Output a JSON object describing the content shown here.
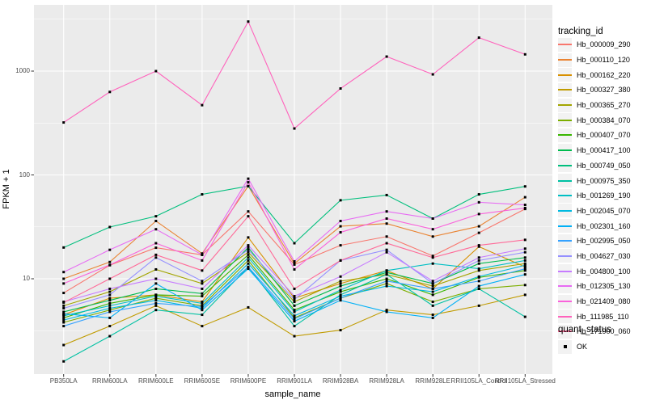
{
  "chart_data": {
    "type": "line",
    "title": "",
    "xlabel": "sample_name",
    "ylabel": "FPKM + 1",
    "yscale": "log10",
    "ytick_labels": [
      "10",
      "100",
      "1000"
    ],
    "ytick_values": [
      10,
      100,
      1000
    ],
    "yminor_values": [
      3.162,
      31.62,
      316.2,
      3162
    ],
    "ylim": [
      1.4,
      4300
    ],
    "grid": true,
    "legend_position": "right",
    "panel_bg": "#EBEBEB",
    "grid_color": "#FFFFFF",
    "point_color": "#000000",
    "tick_color": "#333333",
    "categories": [
      "PB350LA",
      "RRIM600LA",
      "RRIM600LE",
      "RRIM600SE",
      "RRIM600PE",
      "RRIM901LA",
      "RRIM928BA",
      "RRIM928LA",
      "RRIM928LE",
      "RRII105LA_Control",
      "RRII105LA_Stressed"
    ],
    "series": [
      {
        "name": "Hb_000009_290",
        "color": "#F8766D",
        "values": [
          7.3,
          13.5,
          19.9,
          17,
          44.5,
          13.7,
          21,
          25.5,
          16.6,
          27.7,
          47
        ]
      },
      {
        "name": "Hb_000110_120",
        "color": "#EA8331",
        "values": [
          10,
          14.5,
          36,
          17.5,
          78,
          14,
          32,
          34,
          25.5,
          32,
          61
        ]
      },
      {
        "name": "Hb_000162_220",
        "color": "#D89000",
        "values": [
          4.5,
          6.5,
          7,
          6,
          25,
          6.5,
          9,
          12,
          8,
          20.4,
          13
        ]
      },
      {
        "name": "Hb_000327_380",
        "color": "#C09B00",
        "values": [
          2.3,
          3.5,
          5.5,
          3.5,
          5.3,
          2.8,
          3.2,
          5,
          4.5,
          5.5,
          7
        ]
      },
      {
        "name": "Hb_000365_270",
        "color": "#A3A500",
        "values": [
          5.5,
          7.5,
          12.3,
          9,
          18,
          6,
          9.5,
          11,
          8.5,
          12,
          14
        ]
      },
      {
        "name": "Hb_000384_070",
        "color": "#7CAE00",
        "values": [
          3.8,
          5,
          6.5,
          5.5,
          15,
          4.2,
          6.5,
          9,
          6,
          8,
          8.7
        ]
      },
      {
        "name": "Hb_000407_070",
        "color": "#39B600",
        "values": [
          4.2,
          5.8,
          7,
          6.8,
          17,
          5,
          7.5,
          10,
          7,
          10.3,
          12
        ]
      },
      {
        "name": "Hb_000417_100",
        "color": "#00BB4E",
        "values": [
          4.8,
          6.2,
          8,
          7.2,
          20,
          5.5,
          8.5,
          11.5,
          9,
          14,
          16
        ]
      },
      {
        "name": "Hb_000749_050",
        "color": "#00BF7D",
        "values": [
          20,
          31.5,
          40,
          65,
          78,
          22,
          57,
          64,
          38,
          65,
          77.5
        ]
      },
      {
        "name": "Hb_000975_350",
        "color": "#00C1A3",
        "values": [
          1.6,
          2.8,
          5,
          4.5,
          13,
          3.5,
          7,
          11,
          5.5,
          8,
          4.3
        ]
      },
      {
        "name": "Hb_001269_190",
        "color": "#00BFC4",
        "values": [
          4.4,
          5.5,
          6.8,
          5.8,
          16,
          4.8,
          7.8,
          12,
          14,
          12.5,
          15
        ]
      },
      {
        "name": "Hb_002045_070",
        "color": "#00BAE0",
        "values": [
          4.0,
          5.2,
          6.2,
          5.2,
          14,
          4.4,
          6.8,
          8.5,
          7.5,
          10.5,
          13.5
        ]
      },
      {
        "name": "Hb_002301_160",
        "color": "#00B0F6",
        "values": [
          4.6,
          4.2,
          9,
          5,
          12.5,
          3.9,
          6.2,
          4.8,
          4.2,
          8.5,
          11
        ]
      },
      {
        "name": "Hb_002995_050",
        "color": "#35A2FF",
        "values": [
          3.5,
          4.8,
          5.8,
          5.4,
          13,
          4.1,
          6.5,
          9.5,
          8,
          9.5,
          12.5
        ]
      },
      {
        "name": "Hb_004627_030",
        "color": "#9590FF",
        "values": [
          5.2,
          7,
          16,
          9.5,
          19,
          6.3,
          15,
          19,
          9,
          15,
          18
        ]
      },
      {
        "name": "Hb_004800_100",
        "color": "#C77CFF",
        "values": [
          6,
          8,
          10,
          8,
          21,
          6.8,
          10.5,
          18,
          9.5,
          16,
          19.5
        ]
      },
      {
        "name": "Hb_012305_130",
        "color": "#E76BF3",
        "values": [
          11.6,
          19,
          30,
          17,
          92,
          14.7,
          36,
          44.5,
          38,
          54.5,
          51.5
        ]
      },
      {
        "name": "Hb_021409_080",
        "color": "#FA62DB",
        "values": [
          9,
          13.6,
          22,
          15,
          85,
          12.3,
          28,
          38,
          30,
          42,
          48
        ]
      },
      {
        "name": "Hb_111985_110",
        "color": "#FF62BC",
        "values": [
          320,
          630,
          1000,
          470,
          3000,
          280,
          680,
          1380,
          930,
          2100,
          1450
        ]
      },
      {
        "name": "Hb_171900_060",
        "color": "#FF6A98",
        "values": [
          5.9,
          10,
          17,
          12,
          40,
          8,
          15,
          22,
          16,
          21,
          23.7
        ]
      }
    ]
  },
  "legend": {
    "tracking_title": "tracking_id",
    "quant_title": "quant_status",
    "quant_items": [
      "OK"
    ]
  }
}
